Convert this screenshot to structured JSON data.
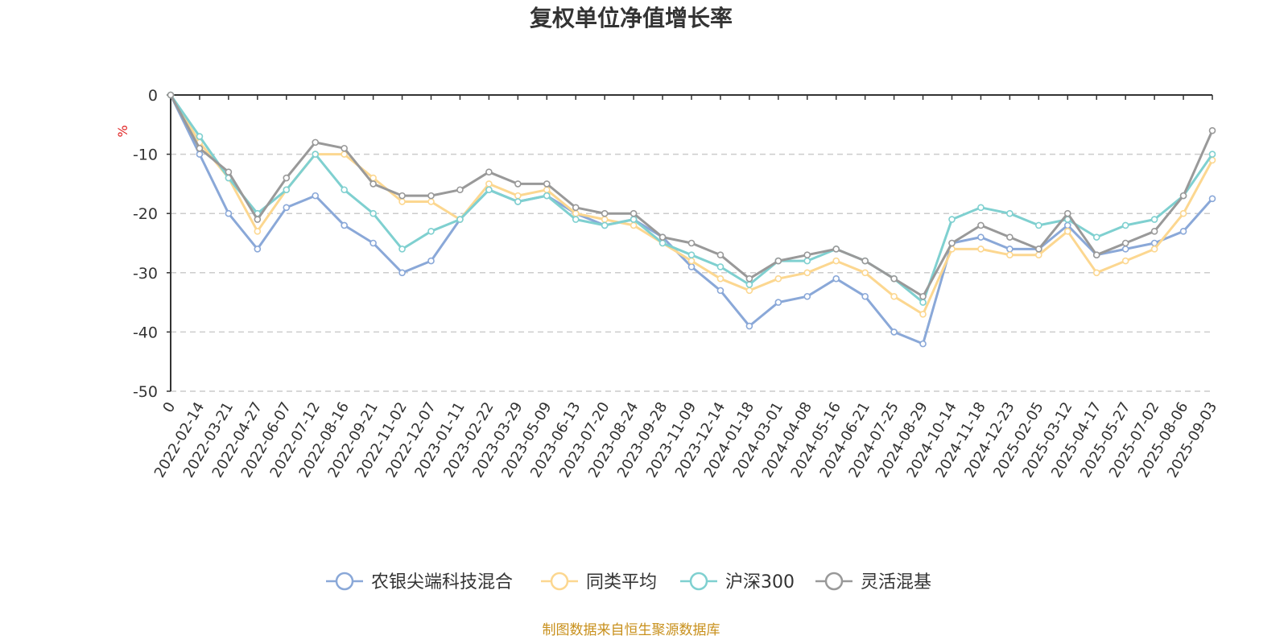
{
  "chart_data": {
    "type": "line",
    "title": "复权单位净值增长率",
    "ylabel": "%",
    "ylim": [
      -50,
      0
    ],
    "yticks": [
      0,
      -10,
      -20,
      -30,
      -40,
      -50
    ],
    "grid": "dashed horizontal",
    "legend_position": "bottom-center",
    "x_tick_labels": [
      "0",
      "2022-02-14",
      "2022-03-21",
      "2022-04-27",
      "2022-06-07",
      "2022-07-12",
      "2022-08-16",
      "2022-09-21",
      "2022-11-02",
      "2022-12-07",
      "2023-01-11",
      "2023-02-22",
      "2023-03-29",
      "2023-05-09",
      "2023-06-13",
      "2023-07-20",
      "2023-08-24",
      "2023-09-28",
      "2023-11-09",
      "2023-12-14",
      "2024-01-18",
      "2024-03-01",
      "2024-04-08",
      "2024-05-16",
      "2024-06-21",
      "2024-07-25",
      "2024-08-29",
      "2024-10-14",
      "2024-11-18",
      "2024-12-23",
      "2025-02-05",
      "2025-03-12",
      "2025-04-17",
      "2025-05-27",
      "2025-07-02",
      "2025-08-06",
      "2025-09-03"
    ],
    "x": [
      "0",
      "2022-02-14",
      "2022-03-21",
      "2022-04-27",
      "2022-06-07",
      "2022-07-12",
      "2022-08-16",
      "2022-09-21",
      "2022-11-02",
      "2022-12-07",
      "2023-01-11",
      "2023-02-22",
      "2023-03-29",
      "2023-05-09",
      "2023-06-13",
      "2023-07-20",
      "2023-08-24",
      "2023-09-28",
      "2023-11-09",
      "2023-12-14",
      "2024-01-18",
      "2024-03-01",
      "2024-04-08",
      "2024-05-16",
      "2024-06-21",
      "2024-07-25",
      "2024-08-29",
      "2024-10-14",
      "2024-11-18",
      "2024-12-23",
      "2025-02-05",
      "2025-03-12",
      "2025-04-17",
      "2025-05-27",
      "2025-07-02",
      "2025-08-06",
      "2025-09-03"
    ],
    "series": [
      {
        "name": "农银尖端科技混合",
        "color": "#8aa8d8",
        "values": [
          0,
          -10,
          -20,
          -26,
          -19,
          -17,
          -22,
          -25,
          -30,
          -28,
          -21,
          -16,
          -18,
          -17,
          -20,
          -22,
          -21,
          -24,
          -29,
          -33,
          -39,
          -35,
          -34,
          -31,
          -34,
          -40,
          -42,
          -25,
          -24,
          -26,
          -26,
          -22,
          -27,
          -26,
          -25,
          -23,
          -17.5
        ]
      },
      {
        "name": "同类平均",
        "color": "#fcd790",
        "values": [
          0,
          -8,
          -14,
          -23,
          -16,
          -10,
          -10,
          -14,
          -18,
          -18,
          -21,
          -15,
          -17,
          -16,
          -20,
          -21,
          -22,
          -25,
          -28,
          -31,
          -33,
          -31,
          -30,
          -28,
          -30,
          -34,
          -37,
          -26,
          -26,
          -27,
          -27,
          -23,
          -30,
          -28,
          -26,
          -20,
          -11
        ]
      },
      {
        "name": "沪深300",
        "color": "#7fd0d0",
        "values": [
          0,
          -7,
          -14,
          -20,
          -16,
          -10,
          -16,
          -20,
          -26,
          -23,
          -21,
          -16,
          -18,
          -17,
          -21,
          -22,
          -21,
          -25,
          -27,
          -29,
          -32,
          -28,
          -28,
          -26,
          -28,
          -31,
          -35,
          -21,
          -19,
          -20,
          -22,
          -21,
          -24,
          -22,
          -21,
          -17,
          -10
        ]
      },
      {
        "name": "灵活混基",
        "color": "#999999",
        "values": [
          0,
          -9,
          -13,
          -21,
          -14,
          -8,
          -9,
          -15,
          -17,
          -17,
          -16,
          -13,
          -15,
          -15,
          -19,
          -20,
          -20,
          -24,
          -25,
          -27,
          -31,
          -28,
          -27,
          -26,
          -28,
          -31,
          -34,
          -25,
          -22,
          -24,
          -26,
          -20,
          -27,
          -25,
          -23,
          -17,
          -6
        ]
      }
    ],
    "source_note": "制图数据来自恒生聚源数据库"
  }
}
